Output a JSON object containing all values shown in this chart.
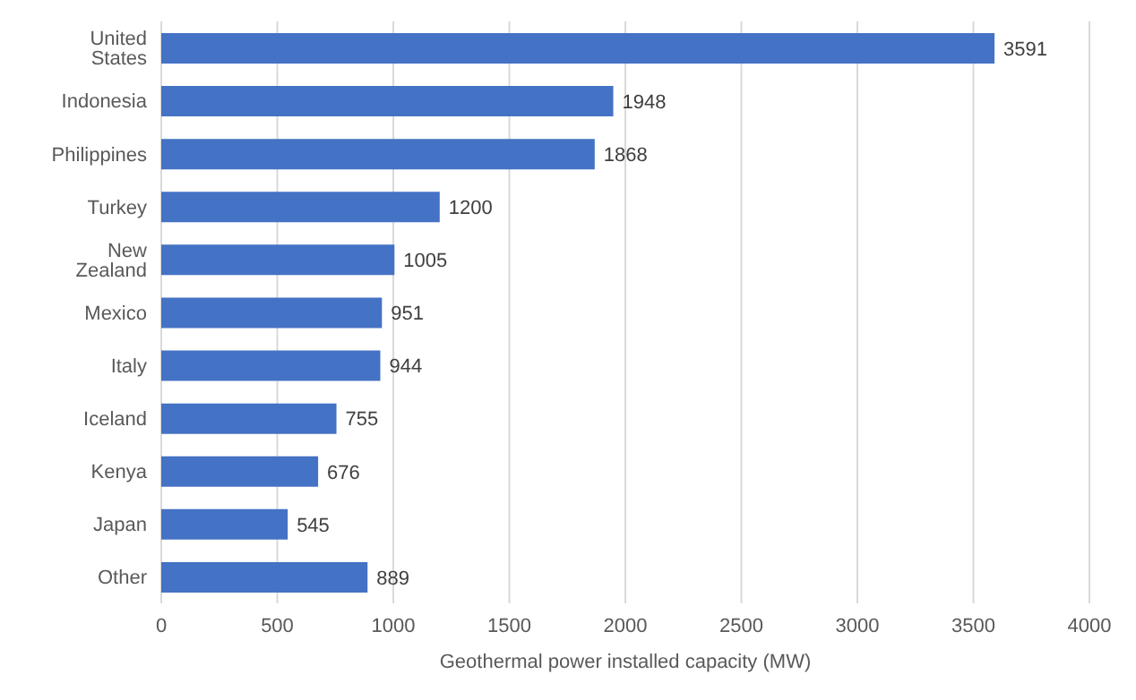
{
  "chart_data": {
    "type": "bar",
    "orientation": "horizontal",
    "xlabel": "Geothermal power installed capacity (MW)",
    "categories": [
      "United States",
      "Indonesia",
      "Philippines",
      "Turkey",
      "New Zealand",
      "Mexico",
      "Italy",
      "Iceland",
      "Kenya",
      "Japan",
      "Other"
    ],
    "values": [
      3591,
      1948,
      1868,
      1200,
      1005,
      951,
      944,
      755,
      676,
      545,
      889
    ],
    "color": "#4472c4",
    "xlim": [
      0,
      4000
    ],
    "xticks": [
      0,
      500,
      1000,
      1500,
      2000,
      2500,
      3000,
      3500,
      4000
    ],
    "grid": "x",
    "data_labels": true
  }
}
